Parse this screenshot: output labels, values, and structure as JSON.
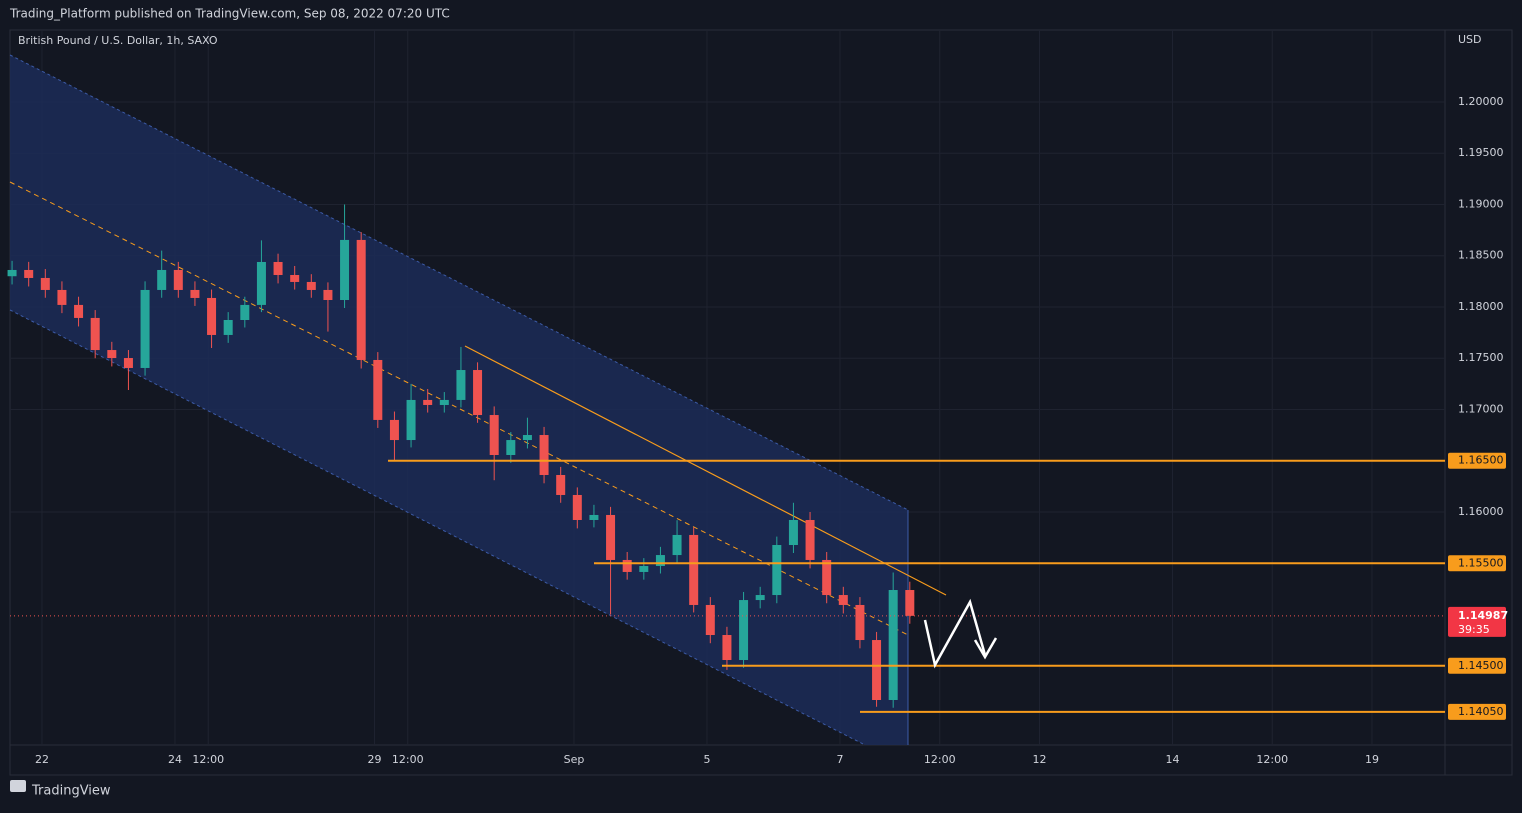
{
  "header": {
    "published": "Trading_Platform published on TradingView.com, Sep 08, 2022 07:20 UTC",
    "brand": "TradingView"
  },
  "chart_data": {
    "type": "candlestick",
    "title": "British Pound / U.S. Dollar, 1h, SAXO",
    "y_axis_label": "USD",
    "up_color": "#26a69a",
    "down_color": "#ef5350",
    "x": [
      -0.45,
      -0.2,
      0.05,
      0.3,
      0.55,
      0.8,
      1.05,
      1.3,
      1.55,
      1.8,
      2.05,
      2.3,
      2.55,
      2.8,
      3.05,
      3.3,
      3.55,
      3.8,
      4.05,
      4.3,
      4.55,
      4.8,
      5.05,
      5.3,
      5.55,
      5.8,
      6.05,
      6.3,
      6.55,
      6.8,
      7.05,
      7.3,
      7.55,
      7.8,
      8.05,
      8.3,
      8.55,
      8.8,
      9.05,
      9.3,
      9.55,
      9.8,
      10.05,
      10.3,
      10.55,
      10.8,
      11.05,
      11.3,
      11.55,
      11.8,
      12.05,
      12.3,
      12.55,
      12.8,
      13.05
    ],
    "open": [
      1.183,
      1.18361,
      1.18283,
      1.18166,
      1.1802,
      1.17893,
      1.1758,
      1.17502,
      1.17405,
      1.18166,
      1.18361,
      1.18166,
      1.18088,
      1.17727,
      1.17873,
      1.1802,
      1.18439,
      1.18312,
      1.18244,
      1.18166,
      1.18068,
      1.18654,
      1.17483,
      1.16898,
      1.16702,
      1.17093,
      1.17044,
      1.17093,
      1.17385,
      1.16946,
      1.16556,
      1.16702,
      1.16751,
      1.16361,
      1.16166,
      1.15922,
      1.15971,
      1.15532,
      1.15415,
      1.15473,
      1.1558,
      1.15776,
      1.15093,
      1.148,
      1.14556,
      1.15141,
      1.1519,
      1.15678,
      1.15922,
      1.15532,
      1.1519,
      1.15093,
      1.14751,
      1.14166,
      1.15239
    ],
    "high": [
      1.1845,
      1.1844,
      1.1837,
      1.1825,
      1.181,
      1.1797,
      1.1766,
      1.1758,
      1.1825,
      1.1855,
      1.1844,
      1.1825,
      1.1817,
      1.1795,
      1.181,
      1.1865,
      1.1852,
      1.184,
      1.1832,
      1.1824,
      1.19,
      1.1873,
      1.1756,
      1.1698,
      1.1725,
      1.172,
      1.1717,
      1.1761,
      1.1746,
      1.1703,
      1.1678,
      1.1692,
      1.1683,
      1.1644,
      1.1624,
      1.1607,
      1.1605,
      1.1561,
      1.1555,
      1.1566,
      1.1592,
      1.1585,
      1.1517,
      1.1488,
      1.1522,
      1.1527,
      1.1576,
      1.1609,
      1.16,
      1.1561,
      1.1527,
      1.1517,
      1.1483,
      1.1541,
      1.1532
    ],
    "low": [
      1.1822,
      1.182,
      1.1809,
      1.1794,
      1.1781,
      1.175,
      1.1742,
      1.1719,
      1.1733,
      1.1809,
      1.1809,
      1.1801,
      1.176,
      1.1765,
      1.178,
      1.1795,
      1.1823,
      1.1817,
      1.1809,
      1.1776,
      1.1799,
      1.174,
      1.1682,
      1.165,
      1.1663,
      1.1697,
      1.1697,
      1.1702,
      1.1687,
      1.1631,
      1.1648,
      1.1662,
      1.1628,
      1.1609,
      1.1584,
      1.1585,
      1.15,
      1.1534,
      1.1534,
      1.154,
      1.155,
      1.1502,
      1.1472,
      1.1446,
      1.1448,
      1.1506,
      1.1511,
      1.156,
      1.1545,
      1.1511,
      1.1501,
      1.1467,
      1.141,
      1.1409,
      1.1491
    ],
    "close": [
      1.18361,
      1.18283,
      1.18166,
      1.1802,
      1.17893,
      1.1758,
      1.17502,
      1.17405,
      1.18166,
      1.18361,
      1.18166,
      1.18088,
      1.17727,
      1.17873,
      1.1802,
      1.18439,
      1.18312,
      1.18244,
      1.18166,
      1.18068,
      1.18654,
      1.17483,
      1.16898,
      1.16702,
      1.17093,
      1.17044,
      1.17093,
      1.17385,
      1.16946,
      1.16556,
      1.16702,
      1.16751,
      1.16361,
      1.16166,
      1.15922,
      1.15971,
      1.15532,
      1.15415,
      1.15473,
      1.1558,
      1.15776,
      1.15093,
      1.148,
      1.14556,
      1.15141,
      1.1519,
      1.15678,
      1.15922,
      1.15532,
      1.1519,
      1.15093,
      1.14751,
      1.14166,
      1.15239,
      1.14987
    ],
    "countdown": "39:35",
    "xlim": [
      -0.481,
      21.098
    ],
    "xticks": [
      {
        "value": 0,
        "label": "22"
      },
      {
        "value": 2,
        "label": "24"
      },
      {
        "value": 2.5,
        "label": "12:00"
      },
      {
        "value": 5,
        "label": "29"
      },
      {
        "value": 5.5,
        "label": "12:00"
      },
      {
        "value": 8,
        "label": "Sep"
      },
      {
        "value": 10,
        "label": "5"
      },
      {
        "value": 12,
        "label": "7"
      },
      {
        "value": 13.5,
        "label": "12:00"
      },
      {
        "value": 15,
        "label": "12"
      },
      {
        "value": 17,
        "label": "14"
      },
      {
        "value": 18.5,
        "label": "12:00"
      },
      {
        "value": 20,
        "label": "19"
      }
    ],
    "ylim": [
      1.13727,
      1.20702
    ],
    "yticks": [
      {
        "value": 1.16,
        "label": "1.16000"
      },
      {
        "value": 1.17,
        "label": "1.17000"
      },
      {
        "value": 1.175,
        "label": "1.17500"
      },
      {
        "value": 1.18,
        "label": "1.18000"
      },
      {
        "value": 1.185,
        "label": "1.18500"
      },
      {
        "value": 1.19,
        "label": "1.19000"
      },
      {
        "value": 1.195,
        "label": "1.19500"
      },
      {
        "value": 1.2,
        "label": "1.20000"
      }
    ],
    "levels": [
      {
        "value": 1.165,
        "label": "1.16500"
      },
      {
        "value": 1.155,
        "label": "1.15500"
      },
      {
        "value": 1.145,
        "label": "1.14500"
      },
      {
        "value": 1.1405,
        "label": "1.14050"
      }
    ],
    "level_color": "#f89c1c",
    "grid": true
  }
}
